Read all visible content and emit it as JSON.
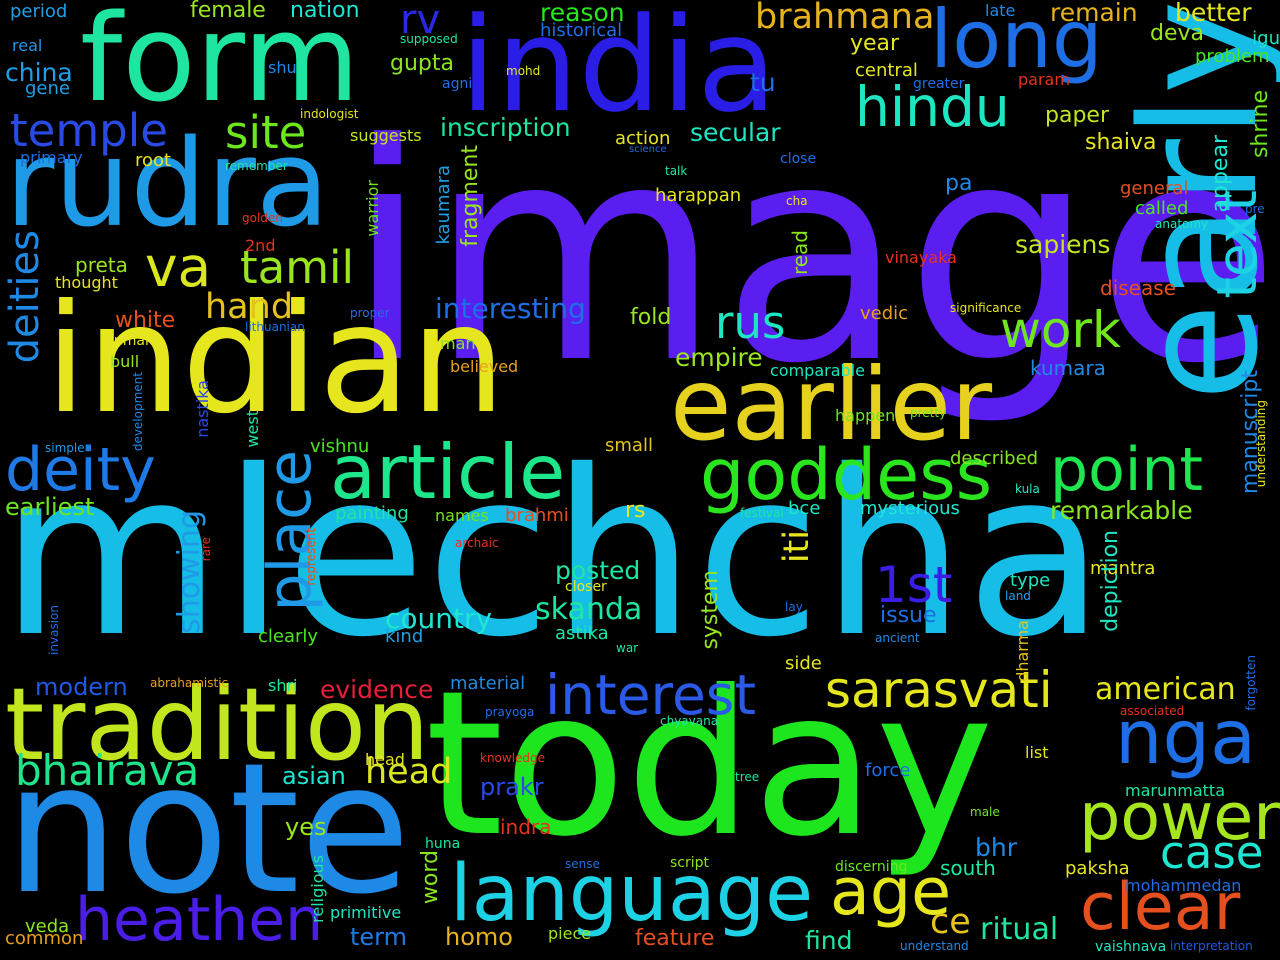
{
  "words": [
    {
      "t": "image",
      "c": "#5a1ef0"
    },
    {
      "t": "mlechcha",
      "c": "#16bde6"
    },
    {
      "t": "today",
      "c": "#1ee61e"
    },
    {
      "t": "indian",
      "c": "#e6e61e"
    },
    {
      "t": "note",
      "c": "#1e8ae6"
    },
    {
      "t": "india",
      "c": "#2a1ee6"
    },
    {
      "t": "form",
      "c": "#1ee6a0"
    },
    {
      "t": "early",
      "c": "#16bde6"
    },
    {
      "t": "rudra",
      "c": "#1e9ae6"
    },
    {
      "t": "earlier",
      "c": "#e6d21e"
    },
    {
      "t": "tradition",
      "c": "#c2e61e"
    },
    {
      "t": "language",
      "c": "#1ed2e6"
    },
    {
      "t": "article",
      "c": "#1ee68a"
    },
    {
      "t": "long",
      "c": "#1e6ee6"
    },
    {
      "t": "goddess",
      "c": "#2ae61e"
    },
    {
      "t": "heathen",
      "c": "#4a1ee6"
    },
    {
      "t": "clear",
      "c": "#e6501e"
    },
    {
      "t": "power",
      "c": "#a6e61e"
    },
    {
      "t": "interest",
      "c": "#2a5ae6"
    },
    {
      "t": "deity",
      "c": "#1e7ae6"
    },
    {
      "t": "point",
      "c": "#1ee64e"
    },
    {
      "t": "age",
      "c": "#e6e61e"
    },
    {
      "t": "sarasvati",
      "c": "#e6e61e"
    },
    {
      "t": "hindu",
      "c": "#1ee6c2"
    },
    {
      "t": "nga",
      "c": "#1e6ee6"
    },
    {
      "t": "work",
      "c": "#6ee61e"
    },
    {
      "t": "place",
      "c": "#1e9ae6"
    },
    {
      "t": "text",
      "c": "#1ed2e6"
    },
    {
      "t": "case",
      "c": "#1ee6d2"
    },
    {
      "t": "bhairava",
      "c": "#1ee68a"
    },
    {
      "t": "tamil",
      "c": "#9ae61e"
    },
    {
      "t": "va",
      "c": "#dae61e"
    },
    {
      "t": "temple",
      "c": "#2a4ae6"
    },
    {
      "t": "site",
      "c": "#6ee61e"
    },
    {
      "t": "rus",
      "c": "#1ee6c2"
    },
    {
      "t": "deities",
      "c": "#1e8ae6"
    },
    {
      "t": "1st",
      "c": "#3a1ee6"
    },
    {
      "t": "rv",
      "c": "#2a2ae6"
    },
    {
      "t": "brahmana",
      "c": "#e6b21e"
    },
    {
      "t": "head",
      "c": "#dae61e"
    },
    {
      "t": "ce",
      "c": "#e6c21e"
    },
    {
      "t": "ritual",
      "c": "#1ee6a0"
    },
    {
      "t": "showing",
      "c": "#1e9ae6"
    },
    {
      "t": "hand",
      "c": "#e6c21e"
    },
    {
      "t": "iti",
      "c": "#e6e61e"
    },
    {
      "t": "skanda",
      "c": "#1ee6a0"
    },
    {
      "t": "country",
      "c": "#1ee6d2"
    },
    {
      "t": "posted",
      "c": "#1ee6a0"
    },
    {
      "t": "american",
      "c": "#e6e61e"
    },
    {
      "t": "inscription",
      "c": "#1ee6a0"
    },
    {
      "t": "secular",
      "c": "#1ee6c2"
    },
    {
      "t": "reason",
      "c": "#2ae61e"
    },
    {
      "t": "interesting",
      "c": "#1e6ee6"
    },
    {
      "t": "empire",
      "c": "#9ae61e"
    },
    {
      "t": "earliest",
      "c": "#6ee61e"
    },
    {
      "t": "remarkable",
      "c": "#8ae61e"
    },
    {
      "t": "sapiens",
      "c": "#c2e61e"
    },
    {
      "t": "china",
      "c": "#1ea0e6"
    },
    {
      "t": "remain",
      "c": "#e6b21e"
    },
    {
      "t": "better",
      "c": "#e6e61e"
    },
    {
      "t": "evidence",
      "c": "#e61e3a"
    },
    {
      "t": "modern",
      "c": "#1e5ae6"
    },
    {
      "t": "asian",
      "c": "#1ee6d2"
    },
    {
      "t": "yes",
      "c": "#9ae61e"
    },
    {
      "t": "bhr",
      "c": "#1e8ae6"
    },
    {
      "t": "homo",
      "c": "#e6b21e"
    },
    {
      "t": "term",
      "c": "#1e7ae6"
    },
    {
      "t": "find",
      "c": "#1ee6a0"
    },
    {
      "t": "feature",
      "c": "#e6501e"
    },
    {
      "t": "veda",
      "c": "#8ae61e"
    },
    {
      "t": "common",
      "c": "#e6a01e"
    },
    {
      "t": "paper",
      "c": "#c2e61e"
    },
    {
      "t": "shaiva",
      "c": "#e6e61e"
    },
    {
      "t": "fold",
      "c": "#9ae61e"
    },
    {
      "t": "gupta",
      "c": "#8ae61e"
    },
    {
      "t": "female",
      "c": "#9ae61e"
    },
    {
      "t": "nation",
      "c": "#1ee6d2"
    },
    {
      "t": "period",
      "c": "#1ea0e6"
    },
    {
      "t": "deva",
      "c": "#9ae61e"
    },
    {
      "t": "year",
      "c": "#e6e61e"
    },
    {
      "t": "fragment",
      "c": "#9ae61e"
    },
    {
      "t": "manuscript",
      "c": "#1e8ae6"
    },
    {
      "t": "appear",
      "c": "#1ee6d2"
    },
    {
      "t": "shrine",
      "c": "#6ee61e"
    },
    {
      "t": "kumara",
      "c": "#1e8ae6"
    },
    {
      "t": "disease",
      "c": "#e6501e"
    },
    {
      "t": "mantra",
      "c": "#e6e61e"
    },
    {
      "t": "system",
      "c": "#9ae61e"
    },
    {
      "t": "depiction",
      "c": "#1ee6c2"
    },
    {
      "t": "issue",
      "c": "#1e6ee6"
    },
    {
      "t": "prakr",
      "c": "#2a4ae6"
    },
    {
      "t": "indra",
      "c": "#e6321e"
    },
    {
      "t": "word",
      "c": "#8ae61e"
    },
    {
      "t": "south",
      "c": "#1ee6a0"
    },
    {
      "t": "paksha",
      "c": "#e6e61e"
    },
    {
      "t": "material",
      "c": "#1e8ae6"
    },
    {
      "t": "bce",
      "c": "#1ee6c2"
    },
    {
      "t": "names",
      "c": "#6ee61e"
    },
    {
      "t": "brahmi",
      "c": "#e6501e"
    },
    {
      "t": "rs",
      "c": "#e6e61e"
    },
    {
      "t": "painting",
      "c": "#1ee6a0"
    },
    {
      "t": "mysterious",
      "c": "#1ee6d2"
    },
    {
      "t": "described",
      "c": "#8ae61e"
    },
    {
      "t": "white",
      "c": "#e6501e"
    },
    {
      "t": "preta",
      "c": "#9ae61e"
    },
    {
      "t": "vishnu",
      "c": "#4ae61e"
    },
    {
      "t": "small",
      "c": "#e6c21e"
    },
    {
      "t": "tu",
      "c": "#1e6ee6"
    },
    {
      "t": "pa",
      "c": "#1e8ae6"
    },
    {
      "t": "gene",
      "c": "#1ea0e6"
    },
    {
      "t": "real",
      "c": "#1e9ae6"
    },
    {
      "t": "shu",
      "c": "#1e8ae6"
    },
    {
      "t": "primary",
      "c": "#1e6ee6"
    },
    {
      "t": "root",
      "c": "#e6e61e"
    },
    {
      "t": "suggests",
      "c": "#c2e61e"
    },
    {
      "t": "action",
      "c": "#e6e61e"
    },
    {
      "t": "harappan",
      "c": "#e6e61e"
    },
    {
      "t": "general",
      "c": "#e6501e"
    },
    {
      "t": "called",
      "c": "#4ae61e"
    },
    {
      "t": "vinayaka",
      "c": "#e6321e"
    },
    {
      "t": "vedic",
      "c": "#e6a01e"
    },
    {
      "t": "kaumara",
      "c": "#1ea0e6"
    },
    {
      "t": "warrior",
      "c": "#6ee61e"
    },
    {
      "t": "read",
      "c": "#8ae61e"
    },
    {
      "t": "2nd",
      "c": "#e6321e"
    },
    {
      "t": "thought",
      "c": "#e6e61e"
    },
    {
      "t": "nastika",
      "c": "#2a4ae6"
    },
    {
      "t": "west",
      "c": "#1ee6a0"
    },
    {
      "t": "man",
      "c": "#8ae61e"
    },
    {
      "t": "believed",
      "c": "#e6a01e"
    },
    {
      "t": "human",
      "c": "#e6e61e"
    },
    {
      "t": "bull",
      "c": "#9ae61e"
    },
    {
      "t": "comparable",
      "c": "#1ee6c2"
    },
    {
      "t": "happen",
      "c": "#6ee61e"
    },
    {
      "t": "kind",
      "c": "#1ea0e6"
    },
    {
      "t": "clearly",
      "c": "#4ae61e"
    },
    {
      "t": "astika",
      "c": "#1ee6a0"
    },
    {
      "t": "closer",
      "c": "#e6e61e"
    },
    {
      "t": "side",
      "c": "#e6e61e"
    },
    {
      "t": "type",
      "c": "#1ee6c2"
    },
    {
      "t": "dharma",
      "c": "#e6c21e"
    },
    {
      "t": "marunmatta",
      "c": "#1ee6a0"
    },
    {
      "t": "force",
      "c": "#1e6ee6"
    },
    {
      "t": "head",
      "c": "#e6e61e"
    },
    {
      "t": "shri",
      "c": "#1ee6a0"
    },
    {
      "t": "list",
      "c": "#e6e61e"
    },
    {
      "t": "huna",
      "c": "#1ee6a0"
    },
    {
      "t": "script",
      "c": "#8ae61e"
    },
    {
      "t": "discerning",
      "c": "#6ee61e"
    },
    {
      "t": "religious",
      "c": "#1ee6a0"
    },
    {
      "t": "primitive",
      "c": "#1ee6c2"
    },
    {
      "t": "piece",
      "c": "#9ae61e"
    },
    {
      "t": "mohammedan",
      "c": "#1e6ee6"
    },
    {
      "t": "vaishnava",
      "c": "#1ee6c2"
    },
    {
      "t": "understand",
      "c": "#1e8ae6"
    },
    {
      "t": "interpretation",
      "c": "#1e5ae6"
    },
    {
      "t": "associated",
      "c": "#e6321e"
    },
    {
      "t": "forgotten",
      "c": "#1e6ee6"
    },
    {
      "t": "understanding",
      "c": "#e6e61e"
    },
    {
      "t": "anatomy",
      "c": "#1ee6c2"
    },
    {
      "t": "significance",
      "c": "#e6e61e"
    },
    {
      "t": "pretty",
      "c": "#6ee61e"
    },
    {
      "t": "kula",
      "c": "#1ee6c2"
    },
    {
      "t": "festival",
      "c": "#1ee6a0"
    },
    {
      "t": "land",
      "c": "#1ea0e6"
    },
    {
      "t": "lay",
      "c": "#1e6ee6"
    },
    {
      "t": "ancient",
      "c": "#1e8ae6"
    },
    {
      "t": "war",
      "c": "#1ee6a0"
    },
    {
      "t": "chyavana",
      "c": "#1ee6a0"
    },
    {
      "t": "tree",
      "c": "#1ee6a0"
    },
    {
      "t": "male",
      "c": "#6ee61e"
    },
    {
      "t": "sense",
      "c": "#1e6ee6"
    },
    {
      "t": "knowledge",
      "c": "#e6321e"
    },
    {
      "t": "prayoga",
      "c": "#1e6ee6"
    },
    {
      "t": "abrahamistic",
      "c": "#e6a01e"
    },
    {
      "t": "archaic",
      "c": "#e6321e"
    },
    {
      "t": "rare",
      "c": "#e6321e"
    },
    {
      "t": "represent",
      "c": "#e6501e"
    },
    {
      "t": "invasion",
      "c": "#1e6ee6"
    },
    {
      "t": "simple",
      "c": "#1e9ae6"
    },
    {
      "t": "development",
      "c": "#1e8ae6"
    },
    {
      "t": "proper",
      "c": "#1e6ee6"
    },
    {
      "t": "lithuanian",
      "c": "#1e6ee6"
    },
    {
      "t": "golden",
      "c": "#e6321e"
    },
    {
      "t": "remember",
      "c": "#1ee6a0"
    },
    {
      "t": "indologist",
      "c": "#e6e61e"
    },
    {
      "t": "mohd",
      "c": "#e6e61e"
    },
    {
      "t": "agni",
      "c": "#1e6ee6"
    },
    {
      "t": "supposed",
      "c": "#1ee6a0"
    },
    {
      "t": "historical",
      "c": "#1e6ee6"
    },
    {
      "t": "greater",
      "c": "#1e6ee6"
    },
    {
      "t": "param",
      "c": "#e6321e"
    },
    {
      "t": "late",
      "c": "#1e8ae6"
    },
    {
      "t": "igu",
      "c": "#1ee6c2"
    },
    {
      "t": "problem",
      "c": "#4ae61e"
    },
    {
      "t": "central",
      "c": "#e6e61e"
    },
    {
      "t": "science",
      "c": "#1e6ee6"
    },
    {
      "t": "close",
      "c": "#1e6ee6"
    },
    {
      "t": "talk",
      "c": "#1ee6a0"
    },
    {
      "t": "cha",
      "c": "#e6e61e"
    },
    {
      "t": "pre",
      "c": "#1e6ee6"
    }
  ]
}
